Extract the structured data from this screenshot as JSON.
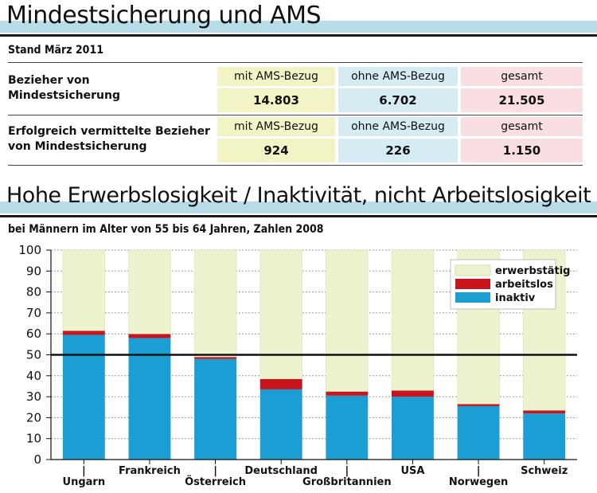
{
  "header1": {
    "title": "Mindestsicherung und AMS"
  },
  "stand": "Stand März 2011",
  "table": {
    "rows": [
      {
        "label_line1": "Bezieher von",
        "label_line2": "Mindestsicherung",
        "headers": [
          "mit AMS-Bezug",
          "ohne AMS-Bezug",
          "gesamt"
        ],
        "values": [
          "14.803",
          "6.702",
          "21.505"
        ]
      },
      {
        "label_line1": "Erfolgreich vermittelte Bezieher",
        "label_line2": "von Mindestsicherung",
        "headers": [
          "mit AMS-Bezug",
          "ohne AMS-Bezug",
          "gesamt"
        ],
        "values": [
          "924",
          "226",
          "1.150"
        ]
      }
    ]
  },
  "header2": {
    "title": "Hohe Erwerbslosigkeit / Inaktivität, nicht Arbeitslosigkeit"
  },
  "colors": {
    "inaktiv": "#1a9ed4",
    "arbeitslos": "#c8141c",
    "erwerbstaetig": "#eef3cf",
    "header_stripe": "#b8dde8"
  },
  "chart_data": {
    "type": "bar",
    "stacked": true,
    "subtitle": "bei Männern im Alter von 55 bis 64 Jahren, Zahlen 2008",
    "categories": [
      "Ungarn",
      "Frankreich",
      "Österreich",
      "Deutschland",
      "Großbritannien",
      "USA",
      "Norwegen",
      "Schweiz"
    ],
    "category_label_rows": [
      2,
      1,
      2,
      1,
      2,
      1,
      2,
      1
    ],
    "series": [
      {
        "name": "inaktiv",
        "values": [
          59.5,
          58,
          48,
          33.5,
          30.5,
          30,
          25.5,
          22
        ]
      },
      {
        "name": "arbeitslos",
        "values": [
          2,
          2,
          1,
          5,
          2,
          3,
          1,
          1.5
        ]
      },
      {
        "name": "erwerbstätig",
        "values": [
          38.5,
          40,
          51,
          61.5,
          67.5,
          67,
          73.5,
          76.5
        ]
      }
    ],
    "ylim": [
      0,
      100
    ],
    "yticks": [
      0,
      10,
      20,
      30,
      40,
      50,
      60,
      70,
      80,
      90,
      100
    ],
    "reference_line": 50,
    "grid": true,
    "legend": {
      "position": "top-right",
      "order": [
        "erwerbstätig",
        "arbeitslos",
        "inaktiv"
      ]
    }
  }
}
